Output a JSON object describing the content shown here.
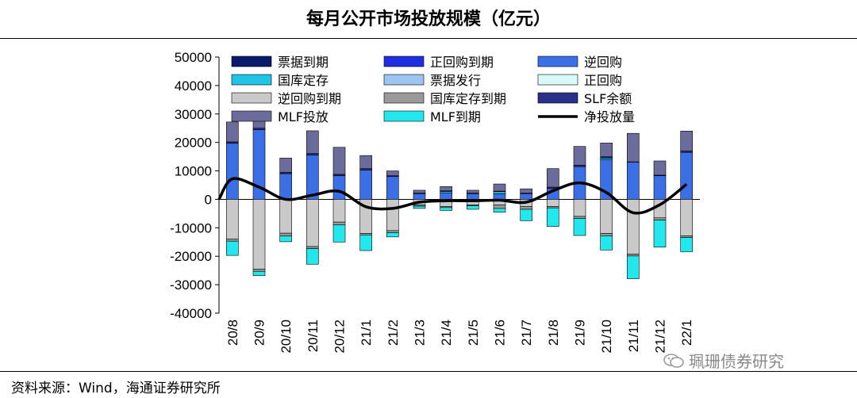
{
  "header": {
    "title": "每月公开市场投放规模（亿元）"
  },
  "footer": {
    "source": "资料来源：Wind，海通证券研究所",
    "watermark": "珮珊债券研究"
  },
  "colors": {
    "bill_maturity": "#0a1a6b",
    "repo_maturity": "#1f2fe0",
    "reverse_repo": "#3b6fe6",
    "treasury_deposit": "#1fc4e6",
    "bill_issue": "#9ec4f2",
    "repo": "#d8faf8",
    "reverse_repo_maturity": "#c9c9c9",
    "treasury_deposit_maturity": "#9a9a9a",
    "slf_balance": "#2a2f8a",
    "mlf_injection": "#6c6c9c",
    "mlf_maturity": "#22e8ee",
    "net_injection": "#000000"
  },
  "chart_data": {
    "type": "bar",
    "stacked": true,
    "title": "每月公开市场投放规模（亿元）",
    "categories": [
      "20/8",
      "20/9",
      "20/10",
      "20/11",
      "20/12",
      "21/1",
      "21/2",
      "21/3",
      "21/4",
      "21/5",
      "21/6",
      "21/7",
      "21/8",
      "21/9",
      "21/10",
      "21/11",
      "21/12",
      "22/1"
    ],
    "ylim": [
      -40000,
      50000
    ],
    "yticks": [
      50000,
      40000,
      30000,
      20000,
      10000,
      0,
      -10000,
      -20000,
      -30000,
      -40000
    ],
    "legend": [
      {
        "key": "bill_maturity",
        "label": "票据到期"
      },
      {
        "key": "repo_maturity",
        "label": "正回购到期"
      },
      {
        "key": "reverse_repo",
        "label": "逆回购"
      },
      {
        "key": "treasury_deposit",
        "label": "国库定存"
      },
      {
        "key": "bill_issue",
        "label": "票据发行"
      },
      {
        "key": "repo",
        "label": "正回购"
      },
      {
        "key": "reverse_repo_maturity",
        "label": "逆回购到期"
      },
      {
        "key": "treasury_deposit_maturity",
        "label": "国库定存到期"
      },
      {
        "key": "slf_balance",
        "label": "SLF余额"
      },
      {
        "key": "mlf_injection",
        "label": "MLF投放"
      },
      {
        "key": "mlf_maturity",
        "label": "MLF到期"
      },
      {
        "key": "net_injection",
        "label": "净投放量"
      }
    ],
    "positive_series": [
      {
        "key": "reverse_repo",
        "name": "逆回购",
        "values": [
          19700,
          24500,
          9000,
          15600,
          8300,
          10300,
          8000,
          2000,
          2300,
          2000,
          2000,
          2000,
          3800,
          11500,
          14000,
          13100,
          8300,
          16500
        ]
      },
      {
        "key": "treasury_deposit",
        "name": "国库定存",
        "values": [
          0,
          0,
          0,
          0,
          0,
          0,
          0,
          0,
          500,
          0,
          700,
          0,
          0,
          0,
          500,
          0,
          0,
          0
        ]
      },
      {
        "key": "slf_balance",
        "name": "SLF余额",
        "values": [
          500,
          500,
          500,
          500,
          500,
          500,
          300,
          200,
          200,
          200,
          200,
          200,
          500,
          500,
          500,
          100,
          200,
          500
        ]
      },
      {
        "key": "mlf_injection",
        "name": "MLF投放",
        "values": [
          7000,
          6000,
          5000,
          8000,
          9500,
          4600,
          1700,
          1000,
          1500,
          1000,
          2500,
          1500,
          6500,
          6600,
          4800,
          10000,
          5000,
          7000
        ]
      }
    ],
    "negative_series": [
      {
        "key": "reverse_repo_maturity",
        "name": "逆回购到期",
        "values": [
          -14000,
          -24500,
          -11900,
          -16600,
          -8000,
          -12000,
          -11000,
          -2000,
          -2500,
          -2000,
          -2000,
          -2500,
          -2500,
          -6000,
          -12000,
          -19200,
          -6500,
          -12800
        ]
      },
      {
        "key": "treasury_deposit_maturity",
        "name": "国库定存到期",
        "values": [
          -700,
          -800,
          -1000,
          -700,
          -1000,
          -500,
          -700,
          -400,
          -400,
          -300,
          -1200,
          -1000,
          -500,
          -700,
          -800,
          -700,
          -800,
          -600
        ]
      },
      {
        "key": "mlf_maturity",
        "name": "MLF到期",
        "values": [
          -5000,
          -1500,
          -2000,
          -5500,
          -6000,
          -5500,
          -1500,
          -800,
          -1000,
          -1200,
          -1300,
          -4000,
          -6500,
          -6000,
          -5000,
          -8000,
          -9500,
          -5000
        ]
      }
    ],
    "line_series": {
      "key": "net_injection",
      "name": "净投放量",
      "values": [
        7200,
        4300,
        0,
        1500,
        2800,
        -2600,
        -3200,
        -1000,
        -500,
        -500,
        -300,
        -1000,
        3000,
        5800,
        2400,
        -4700,
        -1900,
        5300
      ]
    },
    "value_labels_top": {
      "sample_cap": "20/9 top ≈ 31000"
    }
  }
}
